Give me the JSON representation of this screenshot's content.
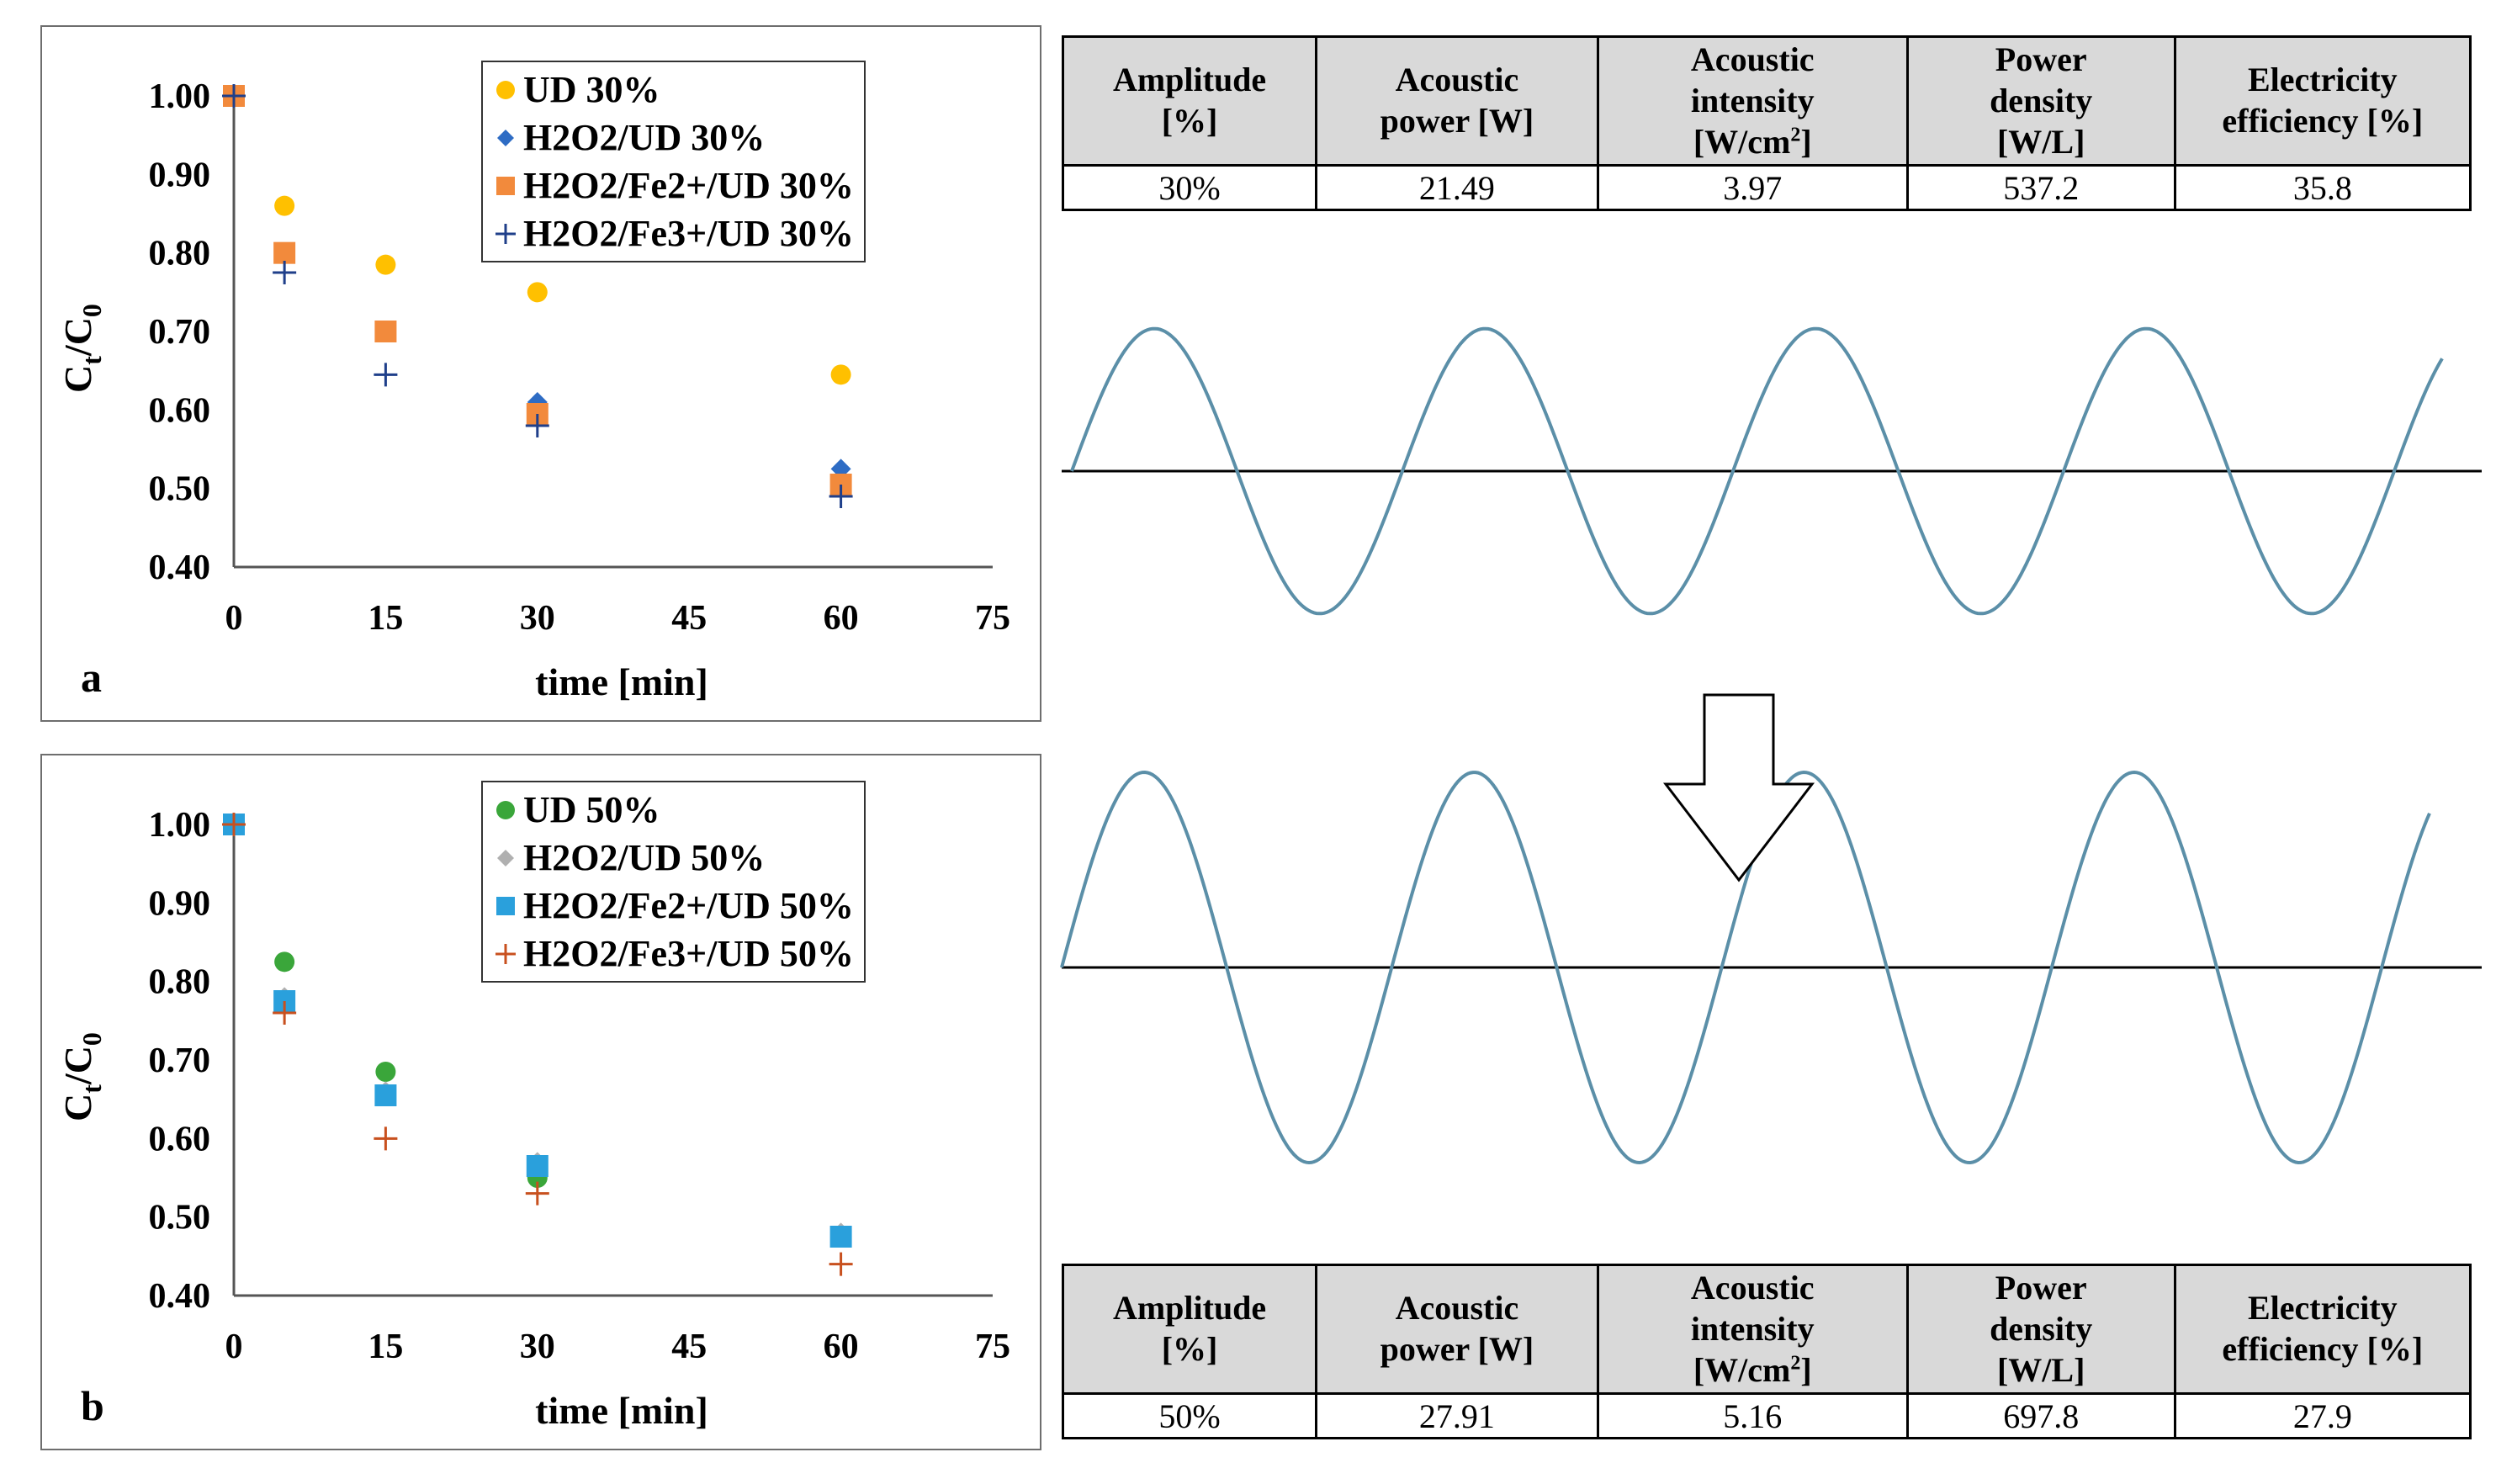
{
  "chart_data": [
    {
      "type": "scatter",
      "panel_label": "a",
      "xlabel": "time  [min]",
      "ylabel_main": "C",
      "ylabel_sub_t": "t",
      "ylabel_slash": "/C",
      "ylabel_sub_0": "0",
      "x_ticks": [
        "0",
        "15",
        "30",
        "45",
        "60",
        "75"
      ],
      "y_ticks": [
        "1.00",
        "0.90",
        "0.80",
        "0.70",
        "0.60",
        "0.50",
        "0.40"
      ],
      "xlim": [
        0,
        75
      ],
      "ylim": [
        0.4,
        1.0
      ],
      "legend_position": "top-right",
      "series": [
        {
          "name": "UD 30%",
          "marker": "circle",
          "color": "#ffc000",
          "x": [
            0,
            5,
            15,
            30,
            60
          ],
          "y": [
            1.0,
            0.86,
            0.785,
            0.75,
            0.645
          ]
        },
        {
          "name": "H2O2/UD 30%",
          "marker": "diamond",
          "color": "#2e6cc4",
          "x": [
            0,
            5,
            15,
            30,
            60
          ],
          "y": [
            1.0,
            0.8,
            0.7,
            0.61,
            0.525
          ]
        },
        {
          "name": "H2O2/Fe2+/UD 30%",
          "marker": "square",
          "color": "#f28a3c",
          "x": [
            0,
            5,
            15,
            30,
            60
          ],
          "y": [
            1.0,
            0.8,
            0.7,
            0.595,
            0.505
          ]
        },
        {
          "name": "H2O2/Fe3+/UD 30%",
          "marker": "plus",
          "color": "#1f3f8a",
          "x": [
            0,
            5,
            15,
            30,
            60
          ],
          "y": [
            1.0,
            0.775,
            0.645,
            0.58,
            0.49
          ]
        }
      ]
    },
    {
      "type": "scatter",
      "panel_label": "b",
      "xlabel": "time  [min]",
      "ylabel_main": "C",
      "ylabel_sub_t": "t",
      "ylabel_slash": "/C",
      "ylabel_sub_0": "0",
      "x_ticks": [
        "0",
        "15",
        "30",
        "45",
        "60",
        "75"
      ],
      "y_ticks": [
        "1.00",
        "0.90",
        "0.80",
        "0.70",
        "0.60",
        "0.50",
        "0.40"
      ],
      "xlim": [
        0,
        75
      ],
      "ylim": [
        0.4,
        1.0
      ],
      "legend_position": "top-right",
      "series": [
        {
          "name": "UD 50%",
          "marker": "circle",
          "color": "#3aa63a",
          "x": [
            0,
            5,
            15,
            30,
            60
          ],
          "y": [
            1.0,
            0.825,
            0.685,
            0.55,
            0.475
          ]
        },
        {
          "name": "H2O2/UD 50%",
          "marker": "diamond",
          "color": "#b0b0b0",
          "x": [
            0,
            5,
            15,
            30,
            60
          ],
          "y": [
            1.0,
            0.78,
            0.66,
            0.57,
            0.48
          ]
        },
        {
          "name": "H2O2/Fe2+/UD 50%",
          "marker": "square",
          "color": "#2aa0dc",
          "x": [
            0,
            5,
            15,
            30,
            60
          ],
          "y": [
            1.0,
            0.775,
            0.655,
            0.565,
            0.475
          ]
        },
        {
          "name": "H2O2/Fe3+/UD 50%",
          "marker": "plus",
          "color": "#c8501e",
          "x": [
            0,
            5,
            15,
            30,
            60
          ],
          "y": [
            1.0,
            0.76,
            0.6,
            0.53,
            0.44
          ]
        }
      ]
    }
  ],
  "tables": {
    "headers": [
      {
        "line1": "Amplitude",
        "line2": "[%]"
      },
      {
        "line1": "Acoustic",
        "line2": "power [W]"
      },
      {
        "line1": "Acoustic",
        "line2": "intensity",
        "line3": "[W/cm",
        "line3_sup": "2",
        "line3_end": "]"
      },
      {
        "line1": "Power",
        "line2": "density",
        "line3": "[W/L]"
      },
      {
        "line1": "Electricity",
        "line2": "efficiency [%]"
      }
    ],
    "top_row": [
      "30%",
      "21.49",
      "3.97",
      "537.2",
      "35.8"
    ],
    "bottom_row": [
      "50%",
      "27.91",
      "5.16",
      "697.8",
      "27.9"
    ]
  },
  "diagram": {
    "wave_color": "#5b8fa8",
    "axis_color": "#000000",
    "arrow_fill": "#ffffff",
    "arrow_stroke": "#000000",
    "top_wave": {
      "cycles": 4,
      "relative_amplitude": 0.73
    },
    "bottom_wave": {
      "cycles": 4,
      "relative_amplitude": 1.0
    }
  }
}
